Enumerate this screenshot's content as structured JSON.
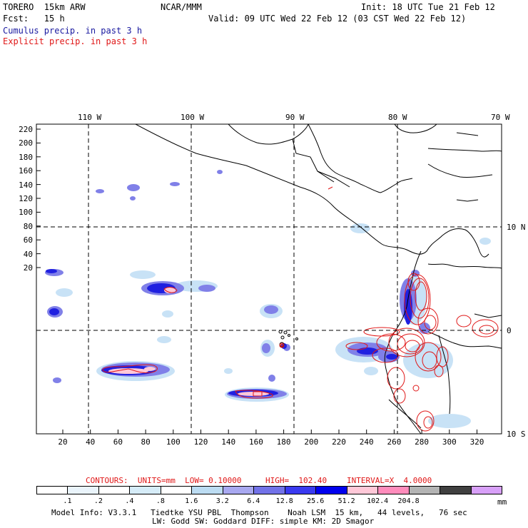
{
  "header": {
    "model": "TORERO  15km ARW",
    "org": "NCAR/MMM",
    "init": "Init: 18 UTC Tue 21 Feb 12",
    "fcst": "Fcst:   15 h",
    "valid": "Valid: 09 UTC Wed 22 Feb 12 (03 CST Wed 22 Feb 12)",
    "field1": "Cumulus precip. in past 3 h",
    "field2": "Explicit precip. in past 3 h"
  },
  "map": {
    "top_lon_labels": [
      "110 W",
      "100 W",
      "90 W",
      "80 W",
      "70 W"
    ],
    "right_lat_labels": [
      "10 N",
      "0",
      "10 S"
    ],
    "y_ticks": [
      "220",
      "200",
      "180",
      "160",
      "140",
      "120",
      "100",
      "80",
      "60",
      "40",
      "20"
    ],
    "x_ticks": [
      "20",
      "40",
      "60",
      "80",
      "100",
      "120",
      "140",
      "160",
      "180",
      "200",
      "220",
      "240",
      "260",
      "280",
      "300",
      "320"
    ]
  },
  "contours_line": {
    "label": "CONTOURS:  UNITS=mm  LOW= 0.10000",
    "high": "HIGH=  102.40",
    "interval": "INTERVAL=X  4.0000"
  },
  "colorbar": {
    "colors": [
      "#ffffff",
      "#eaf4fb",
      "#ffffff",
      "#d6ecf8",
      "#ffffff",
      "#bcdcf2",
      "#a8a8f0",
      "#7272e8",
      "#3a3af0",
      "#0000ee",
      "#ffc8d8",
      "#ff8cbc",
      "#b4b4b4",
      "#404040",
      "#d8a0f8"
    ],
    "labels": [
      ".1",
      ".2",
      ".4",
      ".8",
      "1.6",
      "3.2",
      "6.4",
      "12.8",
      "25.6",
      "51.2",
      "102.4",
      "204.8"
    ],
    "unit": "mm"
  },
  "footer": {
    "line1": "Model Info: V3.3.1   Tiedtke YSU PBL  Thompson    Noah LSM  15 km,   44 levels,   76 sec",
    "line2": "LW: Godd SW: Goddard DIFF: simple KM: 2D Smagor"
  },
  "colors": {
    "cumulus_text": "#1a1aa0",
    "explicit_text": "#e01818",
    "precip_dark_blue": "#2020e0",
    "precip_light_blue": "#c8e2f6",
    "contour_red": "#e01818"
  }
}
